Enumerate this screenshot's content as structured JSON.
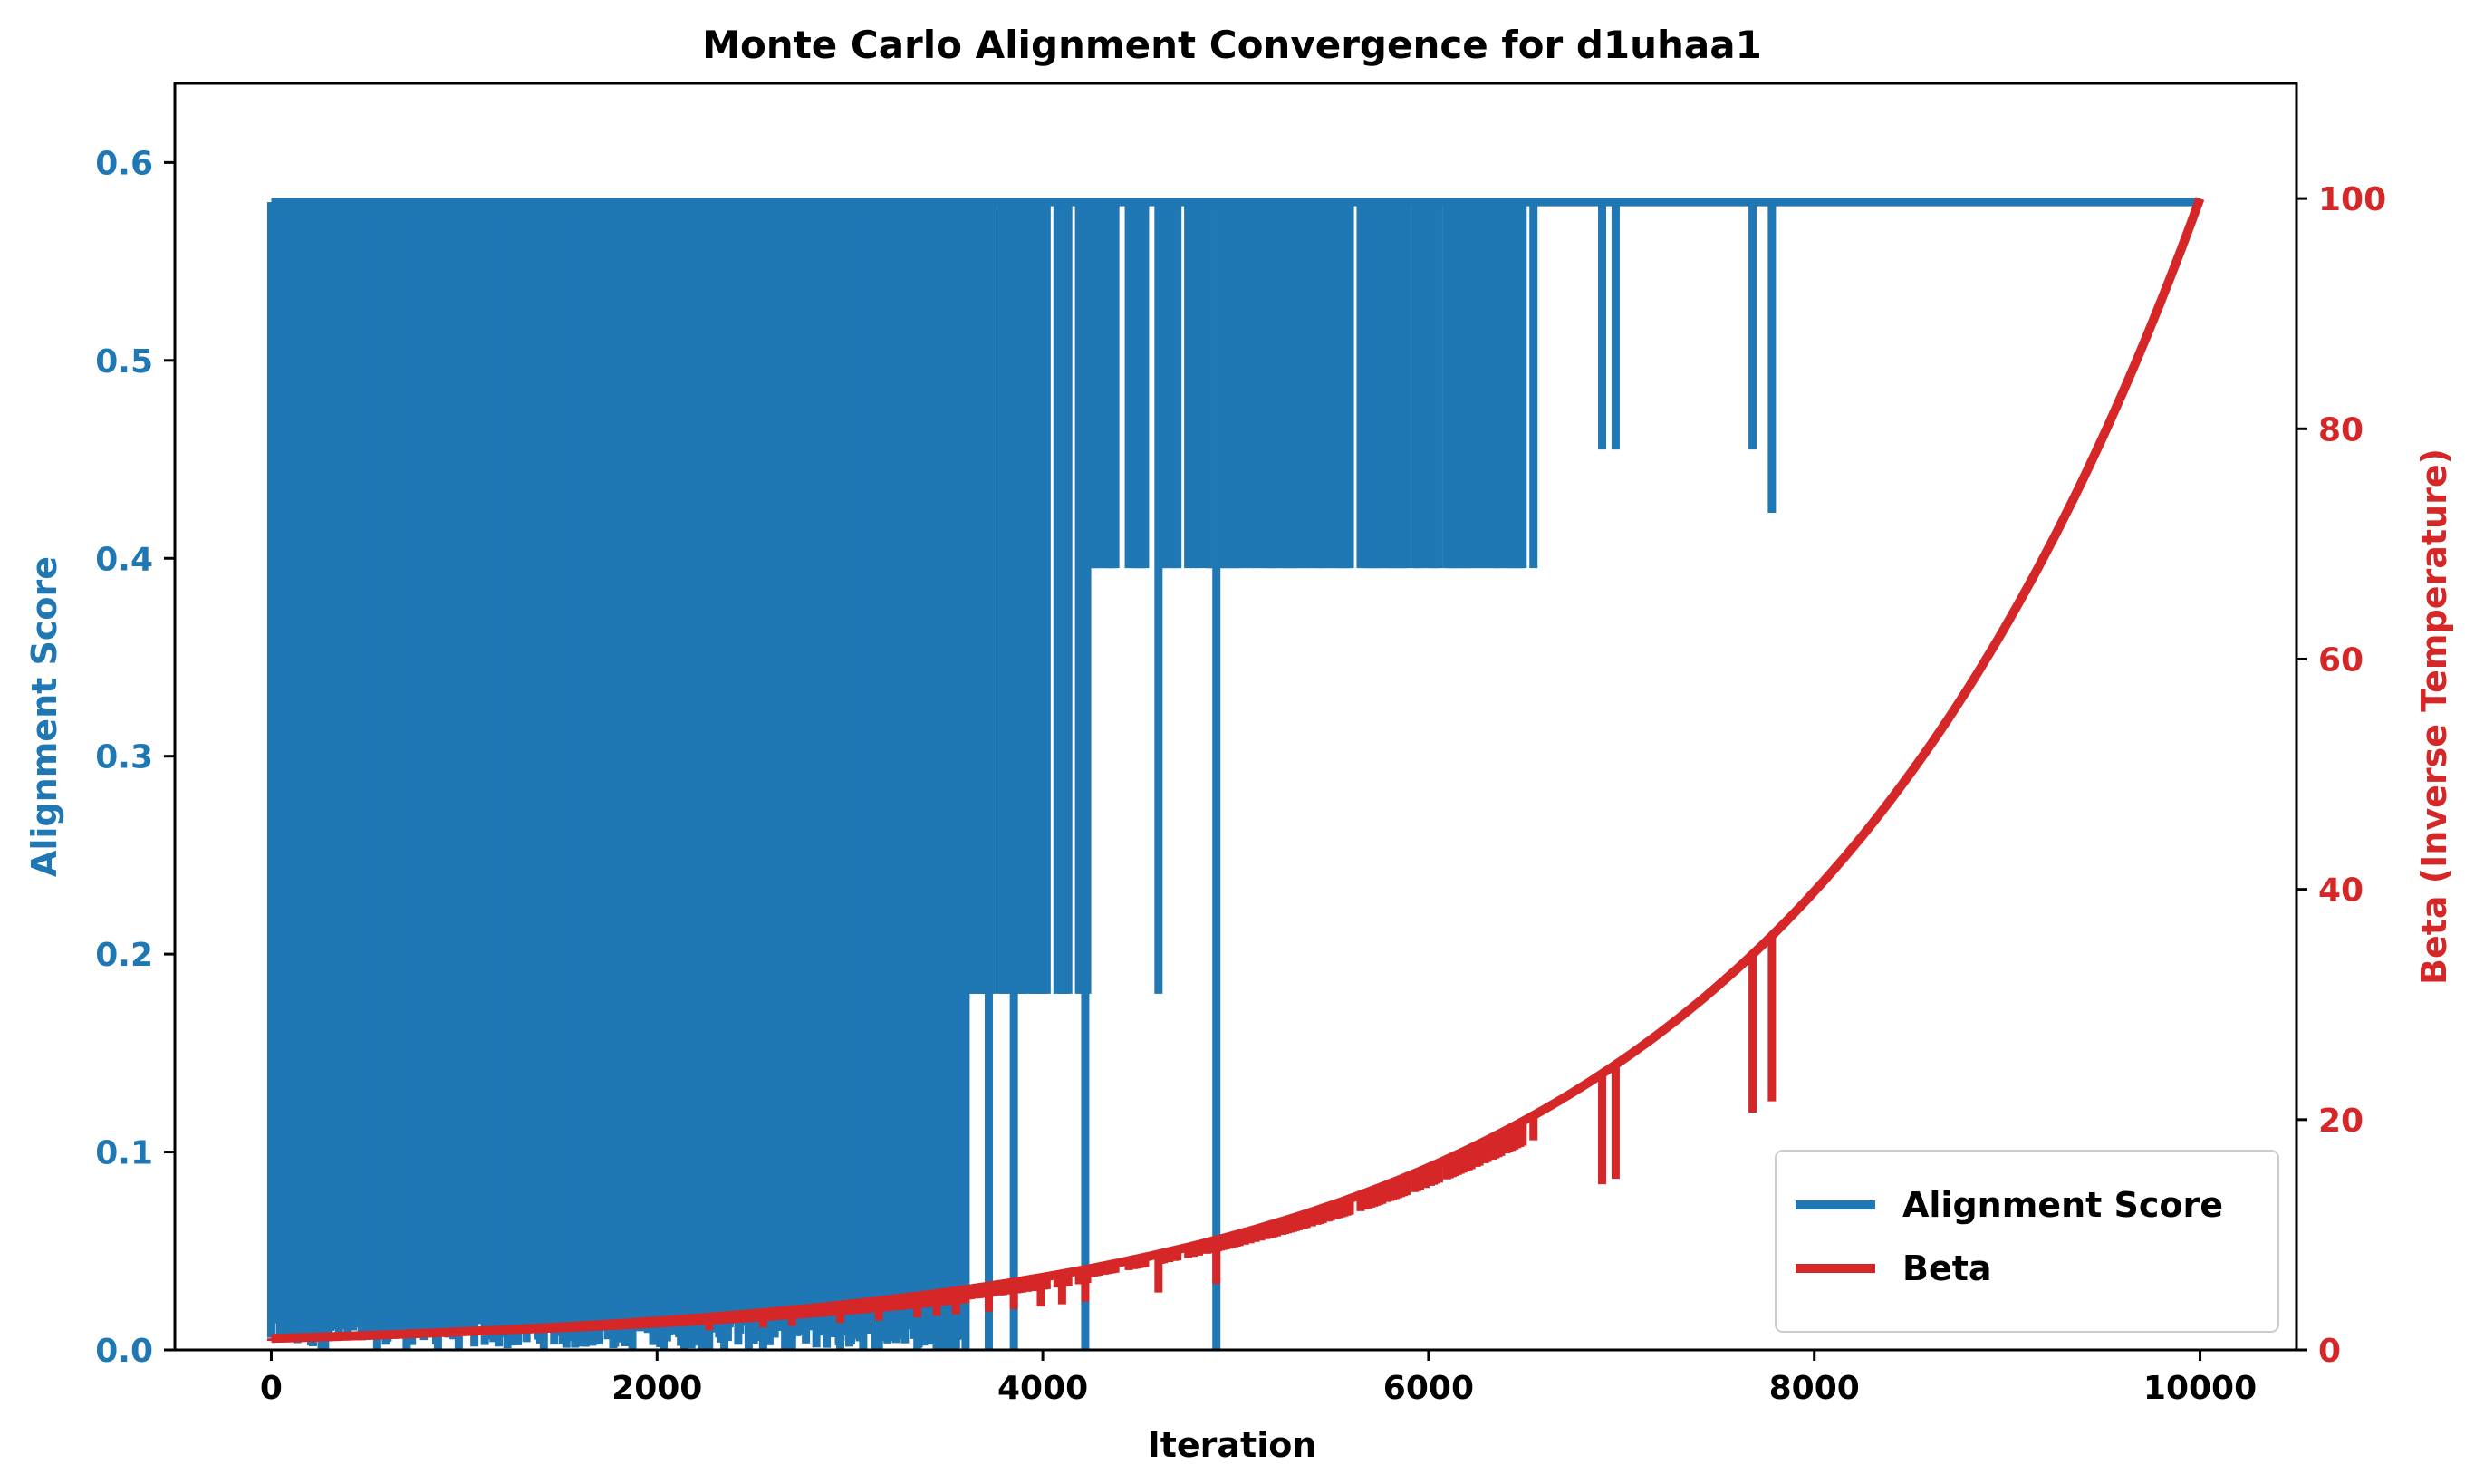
{
  "chart_data": {
    "type": "line",
    "title": "Monte Carlo Alignment Convergence for d1uhaa1",
    "xlabel": "Iteration",
    "ylabel": "Alignment Score",
    "y2label": "Beta (Inverse Temperature)",
    "xlim": [
      -500,
      10500
    ],
    "ylim": [
      0,
      0.64
    ],
    "y2lim": [
      0,
      110
    ],
    "xticks": [
      0,
      2000,
      4000,
      6000,
      8000,
      10000
    ],
    "yticks": [
      0.0,
      0.1,
      0.2,
      0.3,
      0.4,
      0.5,
      0.6
    ],
    "y2ticks": [
      0,
      20,
      40,
      60,
      80,
      100
    ],
    "xtick_labels": [
      "0",
      "2000",
      "4000",
      "6000",
      "8000",
      "10000"
    ],
    "ytick_labels": [
      "0.0",
      "0.1",
      "0.2",
      "0.3",
      "0.4",
      "0.5",
      "0.6"
    ],
    "y2tick_labels": [
      "0",
      "20",
      "40",
      "60",
      "80",
      "100"
    ],
    "grid": false,
    "legend_position": "lower-right",
    "colors": {
      "score": "#1f77b4",
      "beta": "#d62728",
      "axis": "#000000"
    },
    "series": [
      {
        "name": "Alignment Score",
        "axis": "left",
        "color": "#1f77b4",
        "final_value": 0.58,
        "oscillation_bands": [
          {
            "x": [
              0,
              2250
            ],
            "low": 0.0,
            "high": 0.58
          },
          {
            "x": [
              2250,
              3600
            ],
            "low": 0.0,
            "high": 0.58
          },
          {
            "x": [
              3600,
              4250
            ],
            "low": 0.18,
            "high": 0.58
          },
          {
            "x": [
              4250,
              5200
            ],
            "low": 0.395,
            "high": 0.58
          },
          {
            "x": [
              5200,
              6550
            ],
            "low": 0.395,
            "high": 0.58
          }
        ],
        "dips": [
          {
            "x": 2270,
            "low": 0.0
          },
          {
            "x": 2550,
            "low": 0.0
          },
          {
            "x": 2700,
            "low": 0.0
          },
          {
            "x": 2950,
            "low": 0.0
          },
          {
            "x": 3150,
            "low": 0.0
          },
          {
            "x": 3350,
            "low": 0.0
          },
          {
            "x": 3450,
            "low": 0.0
          },
          {
            "x": 3550,
            "low": 0.0
          },
          {
            "x": 3720,
            "low": 0.0
          },
          {
            "x": 3850,
            "low": 0.0
          },
          {
            "x": 3990,
            "low": 0.18
          },
          {
            "x": 4100,
            "low": 0.18
          },
          {
            "x": 4220,
            "low": 0.0
          },
          {
            "x": 4600,
            "low": 0.18
          },
          {
            "x": 4900,
            "low": 0.0
          },
          {
            "x": 6900,
            "low": 0.455
          },
          {
            "x": 6970,
            "low": 0.455
          },
          {
            "x": 7680,
            "low": 0.455
          },
          {
            "x": 7780,
            "low": 0.423
          }
        ]
      },
      {
        "name": "Beta",
        "axis": "right",
        "color": "#d62728",
        "start_value": 1.0,
        "end_value": 100.0,
        "x": [
          0,
          1000,
          2000,
          3000,
          4000,
          5000,
          6000,
          7000,
          8000,
          9000,
          10000
        ],
        "values": [
          1.0,
          1.58,
          2.51,
          3.98,
          6.31,
          10.0,
          15.85,
          25.12,
          39.81,
          63.1,
          100.0
        ]
      }
    ]
  }
}
